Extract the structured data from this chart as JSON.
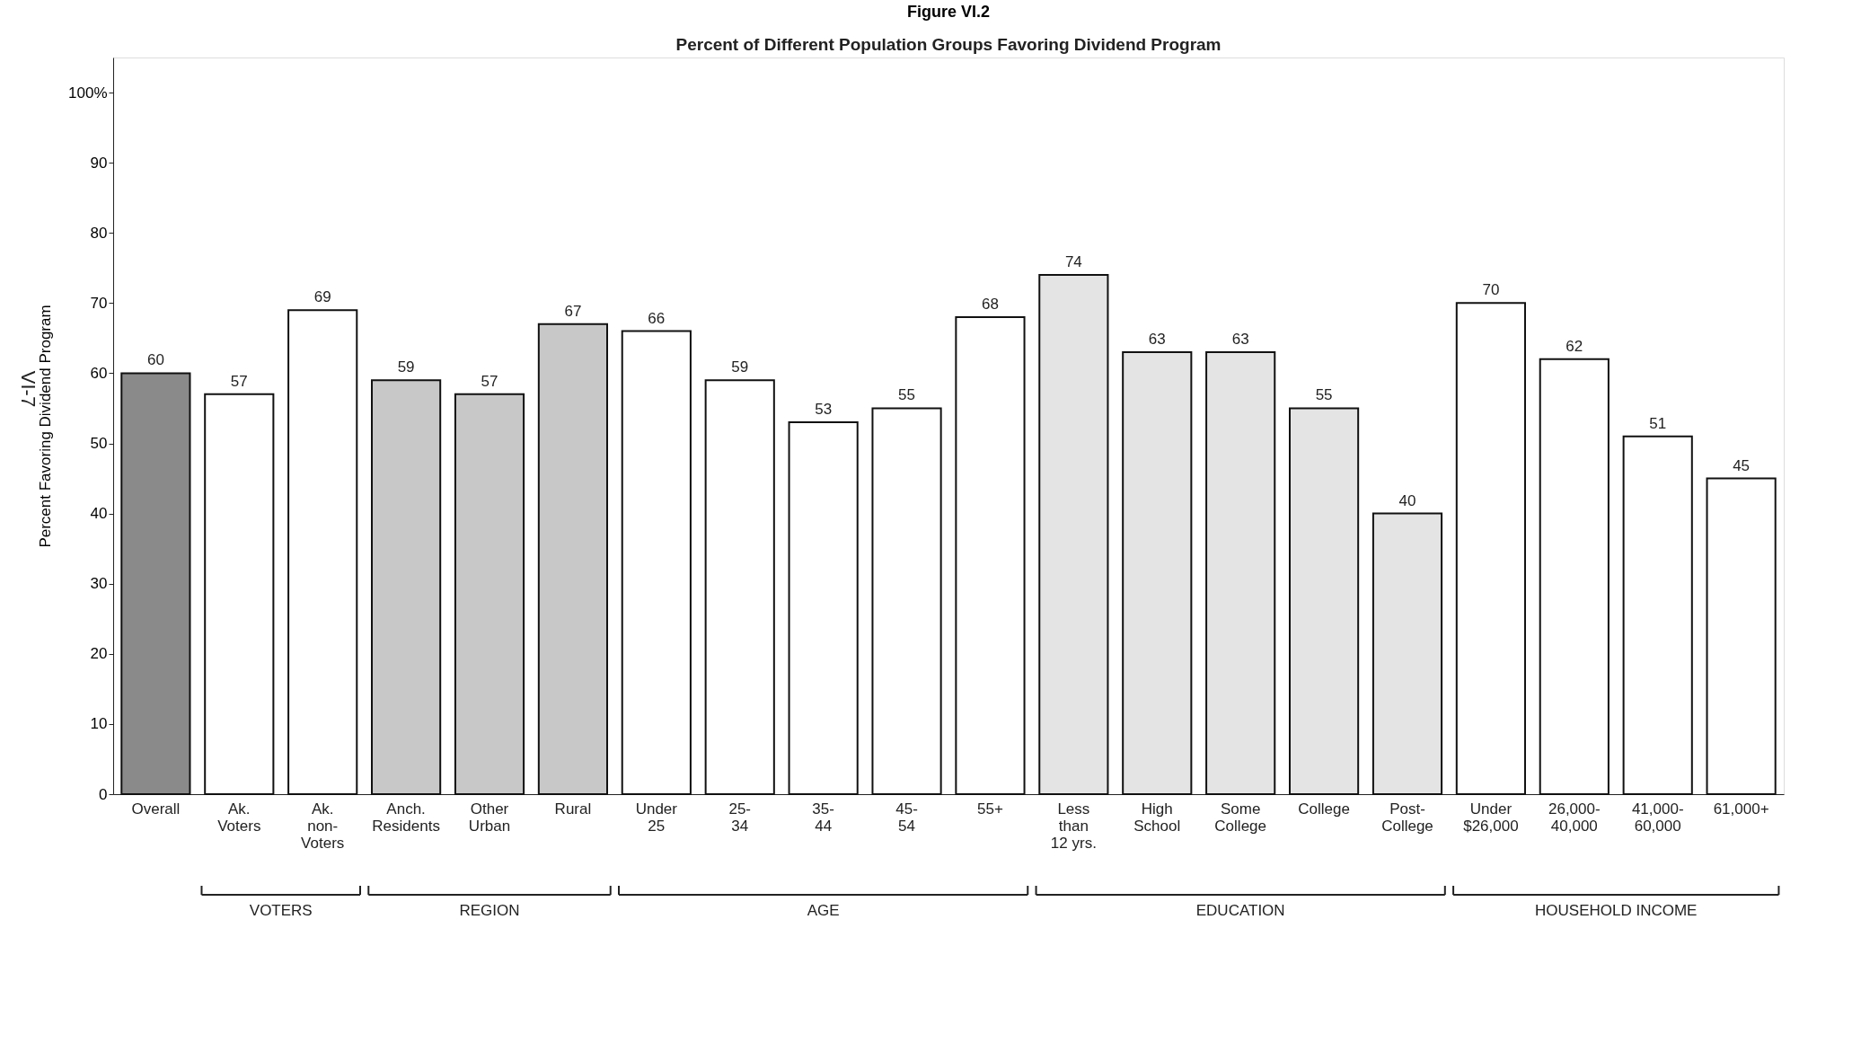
{
  "chart_data": {
    "type": "bar",
    "title": "Figure VI.2",
    "subtitle": "Percent of Different Population Groups Favoring Dividend Program",
    "ylabel": "Percent Favoring Dividend Program",
    "categories": [
      "Overall",
      "Ak.\nVoters",
      "Ak.\nnon-\nVoters",
      "Anch.\nResidents",
      "Other\nUrban",
      "Rural",
      "Under\n25",
      "25-\n34",
      "35-\n44",
      "45-\n54",
      "55+",
      "Less\nthan\n12 yrs.",
      "High\nSchool",
      "Some\nCollege",
      "College",
      "Post-\nCollege",
      "Under\n$26,000",
      "26,000-\n40,000",
      "41,000-\n60,000",
      "61,000+"
    ],
    "values": [
      60,
      57,
      69,
      59,
      57,
      67,
      66,
      59,
      53,
      55,
      68,
      74,
      63,
      63,
      55,
      40,
      70,
      62,
      51,
      45
    ],
    "colors": [
      "#8a8a8a",
      "#ffffff",
      "#ffffff",
      "#c8c8c8",
      "#c8c8c8",
      "#c8c8c8",
      "#ffffff",
      "#ffffff",
      "#ffffff",
      "#ffffff",
      "#ffffff",
      "#e4e4e4",
      "#e4e4e4",
      "#e4e4e4",
      "#e4e4e4",
      "#e4e4e4",
      "#ffffff",
      "#ffffff",
      "#ffffff",
      "#ffffff"
    ],
    "data_labels": true,
    "ylim": [
      0,
      105
    ],
    "yticks": [
      0,
      10,
      20,
      30,
      40,
      50,
      60,
      70,
      80,
      90,
      {
        "value": 100,
        "label": "100%"
      }
    ],
    "grid": false,
    "annotations": [
      "VI-7",
      "VOTERS",
      "REGION",
      "AGE",
      "EDUCATION",
      "HOUSEHOLD INCOME"
    ]
  }
}
